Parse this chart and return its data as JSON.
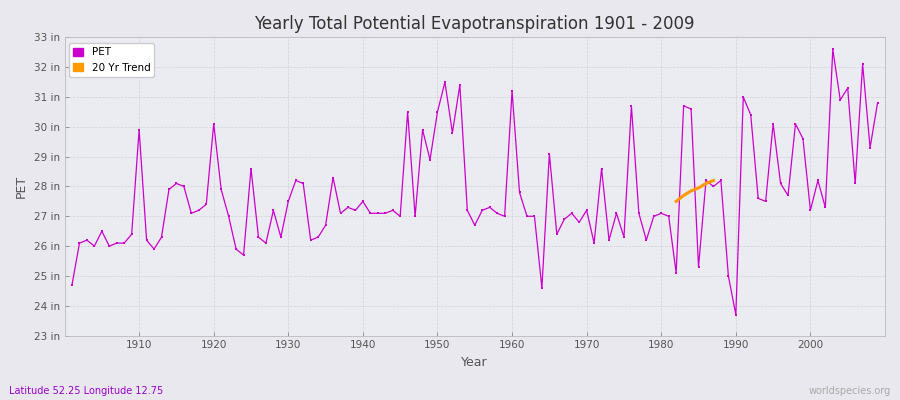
{
  "title": "Yearly Total Potential Evapotranspiration 1901 - 2009",
  "xlabel": "Year",
  "ylabel": "PET",
  "lat_lon_label": "Latitude 52.25 Longitude 12.75",
  "watermark": "worldspecies.org",
  "pet_color": "#CC00CC",
  "trend_color": "#FF9900",
  "background_color": "#E8E8EE",
  "plot_bg_color": "#EBEBF2",
  "ylim": [
    23,
    33
  ],
  "xlim": [
    1901,
    2010
  ],
  "ytick_labels": [
    "23 in",
    "24 in",
    "25 in",
    "26 in",
    "27 in",
    "28 in",
    "29 in",
    "30 in",
    "31 in",
    "32 in",
    "33 in"
  ],
  "ytick_values": [
    23,
    24,
    25,
    26,
    27,
    28,
    29,
    30,
    31,
    32,
    33
  ],
  "years": [
    1901,
    1902,
    1903,
    1904,
    1905,
    1906,
    1907,
    1908,
    1909,
    1910,
    1911,
    1912,
    1913,
    1914,
    1915,
    1916,
    1917,
    1918,
    1919,
    1920,
    1921,
    1922,
    1923,
    1924,
    1925,
    1926,
    1927,
    1928,
    1929,
    1930,
    1931,
    1932,
    1933,
    1934,
    1935,
    1936,
    1937,
    1938,
    1939,
    1940,
    1941,
    1942,
    1943,
    1944,
    1945,
    1946,
    1947,
    1948,
    1949,
    1950,
    1951,
    1952,
    1953,
    1954,
    1955,
    1956,
    1957,
    1958,
    1959,
    1960,
    1961,
    1962,
    1963,
    1964,
    1965,
    1966,
    1967,
    1968,
    1969,
    1970,
    1971,
    1972,
    1973,
    1974,
    1975,
    1976,
    1977,
    1978,
    1979,
    1980,
    1981,
    1982,
    1983,
    1984,
    1985,
    1986,
    1987,
    1988,
    1989,
    1990,
    1991,
    1992,
    1993,
    1994,
    1995,
    1996,
    1997,
    1998,
    1999,
    2000,
    2001,
    2002,
    2003,
    2004,
    2005,
    2006,
    2007,
    2008,
    2009
  ],
  "pet_values": [
    24.7,
    26.1,
    26.2,
    26.0,
    26.5,
    26.0,
    26.1,
    26.1,
    26.4,
    29.9,
    26.2,
    25.9,
    26.3,
    27.9,
    28.1,
    28.0,
    27.1,
    27.2,
    27.4,
    30.1,
    27.9,
    27.0,
    25.9,
    25.7,
    28.6,
    26.3,
    26.1,
    27.2,
    26.3,
    27.5,
    28.2,
    28.1,
    26.2,
    26.3,
    26.7,
    28.3,
    27.1,
    27.3,
    27.2,
    27.5,
    27.1,
    27.1,
    27.1,
    27.2,
    27.0,
    30.5,
    27.0,
    29.9,
    28.9,
    30.5,
    31.5,
    29.8,
    31.4,
    27.2,
    26.7,
    27.2,
    27.3,
    27.1,
    27.0,
    31.2,
    27.8,
    27.0,
    27.0,
    24.6,
    29.1,
    26.4,
    26.9,
    27.1,
    26.8,
    27.2,
    26.1,
    28.6,
    26.2,
    27.1,
    26.3,
    30.7,
    27.1,
    26.2,
    27.0,
    27.1,
    27.0,
    25.1,
    30.7,
    30.6,
    25.3,
    28.2,
    28.0,
    28.2,
    25.0,
    23.7,
    31.0,
    30.4,
    27.6,
    27.5,
    30.1,
    28.1,
    27.7,
    30.1,
    29.6,
    27.2,
    28.2,
    27.3,
    32.6,
    30.9,
    31.3,
    28.1,
    32.1,
    29.3,
    30.8
  ],
  "trend_years": [
    1982,
    1983,
    1984,
    1985,
    1986,
    1987
  ],
  "trend_values": [
    27.5,
    27.7,
    27.85,
    27.95,
    28.1,
    28.2
  ],
  "legend_pet_label": "PET",
  "legend_trend_label": "20 Yr Trend"
}
